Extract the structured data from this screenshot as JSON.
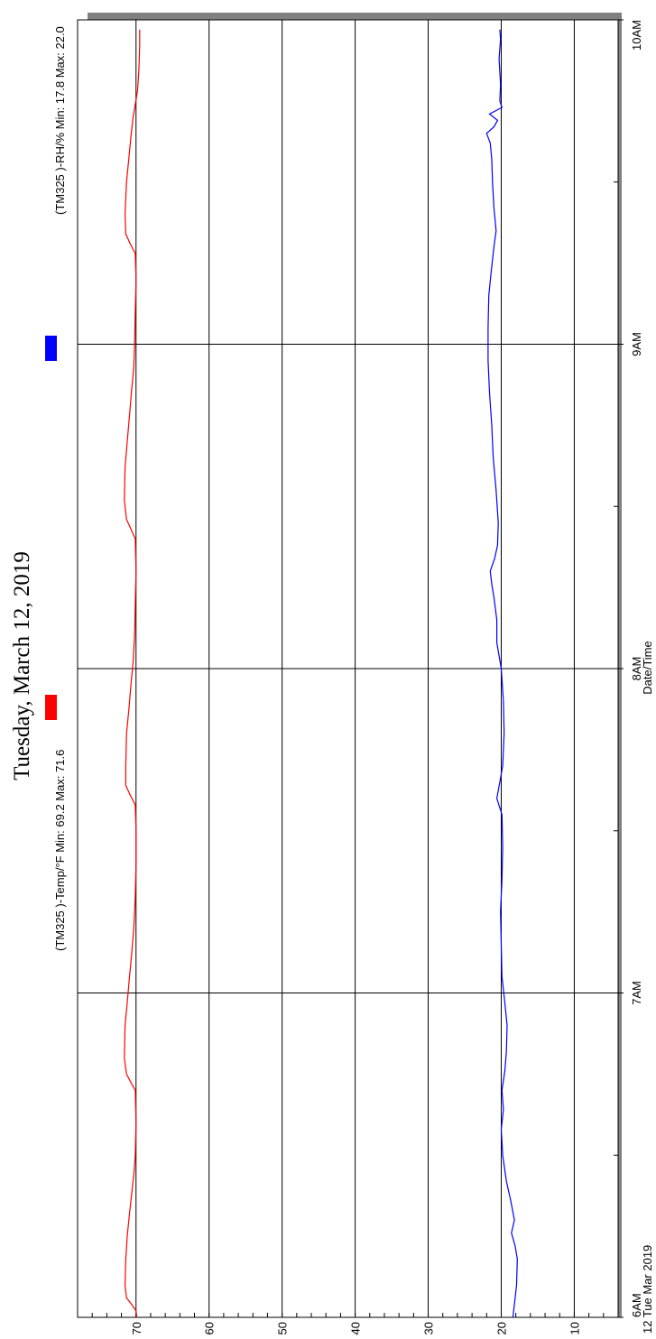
{
  "chart_data": {
    "type": "line",
    "title": "Tuesday, March 12, 2019",
    "xlabel": "Date/Time",
    "x_date_label": "12 Tue Mar 2019",
    "x_ticks": [
      "6AM",
      "7AM",
      "8AM",
      "9AM",
      "10AM"
    ],
    "y_ticks": [
      "70",
      "60",
      "50",
      "40",
      "30",
      "20",
      "10"
    ],
    "ylim": [
      4,
      78
    ],
    "xlim_hours": [
      6.0,
      10.0
    ],
    "grid": true,
    "legend_placement": "top",
    "series": [
      {
        "name": "(TM325    )-Temp/°F Min: 69.2 Max: 71.6",
        "color": "#ff0000",
        "points": [
          [
            6.0,
            69.9
          ],
          [
            6.02,
            70.0
          ],
          [
            6.04,
            70.6
          ],
          [
            6.06,
            71.3
          ],
          [
            6.1,
            71.5
          ],
          [
            6.18,
            71.4
          ],
          [
            6.25,
            71.2
          ],
          [
            6.32,
            70.9
          ],
          [
            6.38,
            70.6
          ],
          [
            6.44,
            70.3
          ],
          [
            6.5,
            70.1
          ],
          [
            6.6,
            70.0
          ],
          [
            6.7,
            70.1
          ],
          [
            6.72,
            70.6
          ],
          [
            6.75,
            71.3
          ],
          [
            6.8,
            71.6
          ],
          [
            6.9,
            71.5
          ],
          [
            6.97,
            71.2
          ],
          [
            7.05,
            70.9
          ],
          [
            7.12,
            70.6
          ],
          [
            7.2,
            70.3
          ],
          [
            7.3,
            70.1
          ],
          [
            7.4,
            70.0
          ],
          [
            7.5,
            70.0
          ],
          [
            7.58,
            70.1
          ],
          [
            7.61,
            70.8
          ],
          [
            7.64,
            71.4
          ],
          [
            7.7,
            71.4
          ],
          [
            7.8,
            71.3
          ],
          [
            7.87,
            71.0
          ],
          [
            7.95,
            70.7
          ],
          [
            8.02,
            70.4
          ],
          [
            8.1,
            70.2
          ],
          [
            8.2,
            70.1
          ],
          [
            8.3,
            70.0
          ],
          [
            8.4,
            70.1
          ],
          [
            8.43,
            70.7
          ],
          [
            8.46,
            71.3
          ],
          [
            8.52,
            71.6
          ],
          [
            8.62,
            71.5
          ],
          [
            8.7,
            71.2
          ],
          [
            8.78,
            70.9
          ],
          [
            8.86,
            70.6
          ],
          [
            8.93,
            70.3
          ],
          [
            9.0,
            70.2
          ],
          [
            9.1,
            70.1
          ],
          [
            9.2,
            70.0
          ],
          [
            9.28,
            70.1
          ],
          [
            9.31,
            70.8
          ],
          [
            9.34,
            71.4
          ],
          [
            9.4,
            71.5
          ],
          [
            9.5,
            71.3
          ],
          [
            9.57,
            71.0
          ],
          [
            9.64,
            70.7
          ],
          [
            9.7,
            70.4
          ],
          [
            9.74,
            70.1
          ],
          [
            9.78,
            69.8
          ],
          [
            9.85,
            69.6
          ],
          [
            9.92,
            69.5
          ],
          [
            9.97,
            69.5
          ]
        ]
      },
      {
        "name": "(TM325    )-RH/% Min: 17.8 Max: 22.0",
        "color": "#0000ff",
        "points": [
          [
            6.0,
            18.4
          ],
          [
            6.04,
            18.2
          ],
          [
            6.1,
            17.9
          ],
          [
            6.18,
            17.8
          ],
          [
            6.22,
            18.1
          ],
          [
            6.26,
            18.6
          ],
          [
            6.3,
            18.2
          ],
          [
            6.36,
            18.7
          ],
          [
            6.42,
            19.3
          ],
          [
            6.5,
            19.8
          ],
          [
            6.58,
            20.0
          ],
          [
            6.64,
            19.7
          ],
          [
            6.7,
            19.9
          ],
          [
            6.76,
            19.5
          ],
          [
            6.82,
            19.3
          ],
          [
            6.9,
            19.2
          ],
          [
            6.97,
            19.5
          ],
          [
            7.05,
            19.9
          ],
          [
            7.15,
            20.0
          ],
          [
            7.25,
            20.1
          ],
          [
            7.35,
            19.9
          ],
          [
            7.45,
            19.8
          ],
          [
            7.55,
            19.9
          ],
          [
            7.6,
            20.6
          ],
          [
            7.65,
            20.2
          ],
          [
            7.7,
            19.8
          ],
          [
            7.8,
            19.6
          ],
          [
            7.9,
            19.7
          ],
          [
            8.0,
            20.0
          ],
          [
            8.08,
            20.6
          ],
          [
            8.15,
            20.6
          ],
          [
            8.22,
            21.0
          ],
          [
            8.26,
            21.3
          ],
          [
            8.3,
            21.5
          ],
          [
            8.34,
            20.9
          ],
          [
            8.38,
            20.5
          ],
          [
            8.45,
            20.4
          ],
          [
            8.55,
            20.7
          ],
          [
            8.65,
            21.1
          ],
          [
            8.75,
            21.3
          ],
          [
            8.85,
            21.6
          ],
          [
            8.95,
            21.8
          ],
          [
            9.05,
            21.8
          ],
          [
            9.15,
            21.7
          ],
          [
            9.22,
            21.4
          ],
          [
            9.3,
            21.0
          ],
          [
            9.35,
            20.7
          ],
          [
            9.42,
            21.0
          ],
          [
            9.5,
            21.2
          ],
          [
            9.57,
            21.3
          ],
          [
            9.62,
            21.5
          ],
          [
            9.65,
            22.0
          ],
          [
            9.67,
            21.0
          ],
          [
            9.69,
            20.5
          ],
          [
            9.71,
            21.6
          ],
          [
            9.73,
            19.9
          ],
          [
            9.75,
            20.2
          ],
          [
            9.8,
            20.1
          ],
          [
            9.88,
            20.3
          ],
          [
            9.94,
            20.1
          ],
          [
            9.97,
            20.2
          ]
        ]
      }
    ]
  }
}
